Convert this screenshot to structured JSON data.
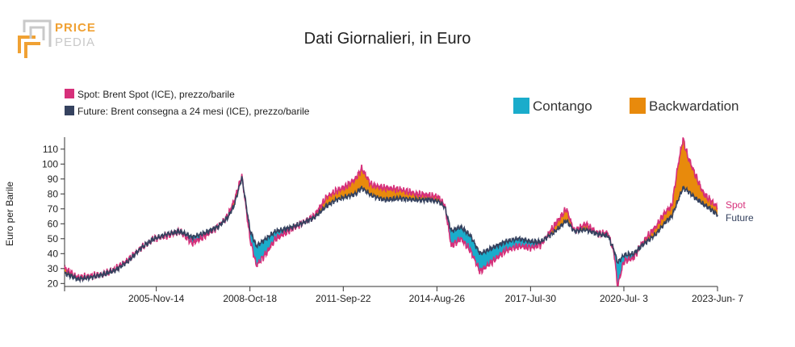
{
  "logo": {
    "top": "PRICE",
    "bottom": "PEDIA",
    "primary_color": "#f0a133",
    "secondary_color": "#c9c9c9"
  },
  "chart_data": {
    "type": "area",
    "title": "Dati Giornalieri, in Euro",
    "ylabel": "Euro per Barile",
    "xlabel": "",
    "ylim": [
      18,
      118
    ],
    "yticks": [
      20,
      30,
      40,
      50,
      60,
      70,
      80,
      90,
      100,
      110
    ],
    "x_tick_labels": [
      "2005-Nov-14",
      "2008-Oct-18",
      "2011-Sep-22",
      "2014-Aug-26",
      "2017-Jul-30",
      "2020-Jul- 3",
      "2023-Jun- 7"
    ],
    "x_tick_years": [
      2005.87,
      2008.8,
      2011.72,
      2014.65,
      2017.58,
      2020.5,
      2023.43
    ],
    "x_range": [
      2003.0,
      2023.43
    ],
    "series": [
      {
        "name": "Spot: Brent Spot (ICE), prezzo/barile",
        "end_label": "Spot",
        "color": "#d6307a"
      },
      {
        "name": "Future: Brent consegna a 24 mesi (ICE), prezzo/barile",
        "end_label": "Future",
        "color": "#35425f"
      }
    ],
    "spread_legend": [
      {
        "label": "Contango",
        "color": "#1aaccb"
      },
      {
        "label": "Backwardation",
        "color": "#e88a0c"
      }
    ],
    "x": [
      2003.0,
      2003.4,
      2003.8,
      2004.2,
      2004.6,
      2005.0,
      2005.4,
      2005.8,
      2006.2,
      2006.6,
      2007.0,
      2007.4,
      2007.8,
      2008.1,
      2008.3,
      2008.55,
      2008.8,
      2009.0,
      2009.3,
      2009.6,
      2010.0,
      2010.4,
      2010.8,
      2011.2,
      2011.5,
      2011.8,
      2012.1,
      2012.3,
      2012.6,
      2013.0,
      2013.5,
      2014.0,
      2014.4,
      2014.7,
      2014.9,
      2015.1,
      2015.4,
      2015.7,
      2016.0,
      2016.4,
      2016.8,
      2017.2,
      2017.6,
      2017.9,
      2018.3,
      2018.7,
      2018.95,
      2019.3,
      2019.7,
      2020.0,
      2020.2,
      2020.3,
      2020.5,
      2020.8,
      2021.1,
      2021.5,
      2021.8,
      2022.0,
      2022.2,
      2022.35,
      2022.5,
      2022.75,
      2023.0,
      2023.2,
      2023.43
    ],
    "spot": [
      30,
      24,
      25,
      26,
      30,
      36,
      44,
      50,
      52,
      55,
      47,
      52,
      58,
      65,
      75,
      92,
      50,
      32,
      40,
      50,
      55,
      60,
      65,
      78,
      82,
      85,
      90,
      97,
      86,
      84,
      83,
      80,
      79,
      78,
      72,
      45,
      50,
      42,
      28,
      35,
      42,
      45,
      44,
      46,
      58,
      70,
      55,
      60,
      53,
      54,
      40,
      18,
      35,
      37,
      48,
      58,
      68,
      72,
      100,
      117,
      105,
      92,
      80,
      76,
      71
    ],
    "future": [
      27,
      23,
      24,
      26,
      29,
      35,
      44,
      50,
      53,
      55,
      51,
      54,
      58,
      64,
      72,
      91,
      56,
      45,
      50,
      55,
      57,
      60,
      64,
      72,
      76,
      78,
      80,
      84,
      79,
      76,
      77,
      76,
      76,
      75,
      71,
      55,
      58,
      52,
      40,
      44,
      48,
      50,
      48,
      48,
      54,
      62,
      55,
      56,
      53,
      52,
      42,
      34,
      39,
      40,
      46,
      53,
      61,
      65,
      76,
      84,
      82,
      77,
      73,
      70,
      66
    ]
  }
}
